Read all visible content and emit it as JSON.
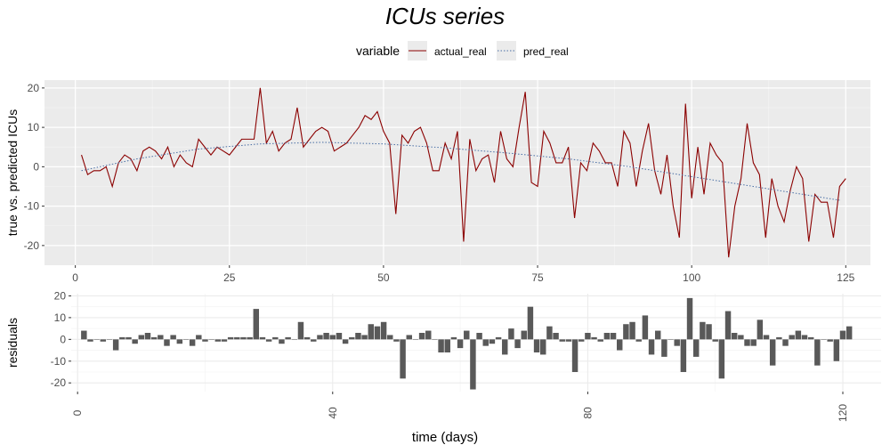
{
  "chart_data": [
    {
      "type": "line",
      "title": "ICUs series",
      "ylabel": "true vs. predicted ICUs",
      "xlim": [
        -5,
        129
      ],
      "ylim": [
        -25,
        22
      ],
      "x_ticks": [
        0,
        25,
        50,
        75,
        100,
        125
      ],
      "y_ticks": [
        -20,
        -10,
        0,
        10,
        20
      ],
      "grid": true,
      "legend": {
        "title": "variable",
        "position": "top"
      },
      "series": [
        {
          "name": "actual_real",
          "color": "#8b0000",
          "line_style": "solid",
          "x_start": 1,
          "values": [
            3,
            -2,
            -1,
            -1,
            0,
            -5,
            1,
            3,
            2,
            -1,
            4,
            5,
            4,
            2,
            5,
            0,
            3,
            1,
            0,
            7,
            5,
            3,
            5,
            4,
            3,
            5,
            7,
            7,
            7,
            20,
            6,
            9,
            4,
            6,
            7,
            15,
            5,
            7,
            9,
            10,
            9,
            4,
            5,
            6,
            8,
            10,
            13,
            12,
            14,
            9,
            6,
            -12,
            8,
            6,
            9,
            10,
            6,
            -1,
            -1,
            6,
            2,
            9,
            -19,
            7,
            -1,
            2,
            3,
            -4,
            9,
            2,
            0,
            10,
            19,
            -4,
            -5,
            9,
            6,
            1,
            1,
            5,
            -13,
            1,
            -1,
            6,
            4,
            1,
            1,
            -5,
            9,
            6,
            -5,
            4,
            11,
            -1,
            -7,
            3,
            -10,
            -18,
            16,
            -8,
            5,
            -7,
            6,
            3,
            1,
            -23,
            -10,
            -3,
            11,
            1,
            -2,
            -18,
            -3,
            -10,
            -14,
            -6,
            0,
            -3,
            -19,
            -7,
            -9,
            -9,
            -18,
            -5,
            -3
          ]
        },
        {
          "name": "pred_real",
          "color": "#4a6fa5",
          "line_style": "dotted",
          "x": [
            1,
            10,
            20,
            30,
            40,
            50,
            60,
            70,
            80,
            90,
            100,
            110,
            124
          ],
          "values": [
            -1,
            2,
            4.5,
            5.8,
            6.2,
            5.8,
            4.8,
            3.5,
            2,
            0,
            -2.5,
            -5,
            -8.5
          ]
        }
      ]
    },
    {
      "type": "bar",
      "ylabel": "residuals",
      "xlabel": "time (days)",
      "xlim": [
        -1,
        126
      ],
      "ylim": [
        -24,
        21
      ],
      "x_ticks": [
        0,
        40,
        80,
        120
      ],
      "y_ticks": [
        -20,
        -10,
        0,
        10,
        20
      ],
      "grid": true,
      "bar_color": "#595959",
      "x_start": 1,
      "values": [
        4,
        -1,
        0,
        -1,
        0,
        -5,
        1,
        1,
        -2,
        2,
        3,
        1,
        2,
        -3,
        2,
        -2,
        0,
        -3,
        2,
        -1,
        0,
        -1,
        -1,
        1,
        1,
        1,
        1,
        14,
        1,
        -1,
        1,
        -2,
        1,
        0,
        8,
        1,
        -1,
        2,
        3,
        2,
        3,
        -2,
        1,
        3,
        2,
        7,
        6,
        8,
        2,
        -1,
        -18,
        2,
        0,
        3,
        4,
        0,
        -6,
        -6,
        1,
        -4,
        4,
        -23,
        3,
        -3,
        -2,
        1,
        -7,
        5,
        -4,
        4,
        15,
        -6,
        -7,
        6,
        3,
        -1,
        -1,
        -15,
        -1,
        3,
        1,
        -1,
        3,
        3,
        -5,
        7,
        8,
        -1,
        11,
        -7,
        4,
        -8,
        0,
        -3,
        -15,
        19,
        -8,
        8,
        7,
        -1,
        -18,
        13,
        3,
        2,
        -3,
        -3,
        9,
        2,
        -12,
        1,
        -3,
        2,
        4,
        2,
        1,
        -12,
        0,
        -1,
        -10,
        4,
        6
      ]
    }
  ]
}
